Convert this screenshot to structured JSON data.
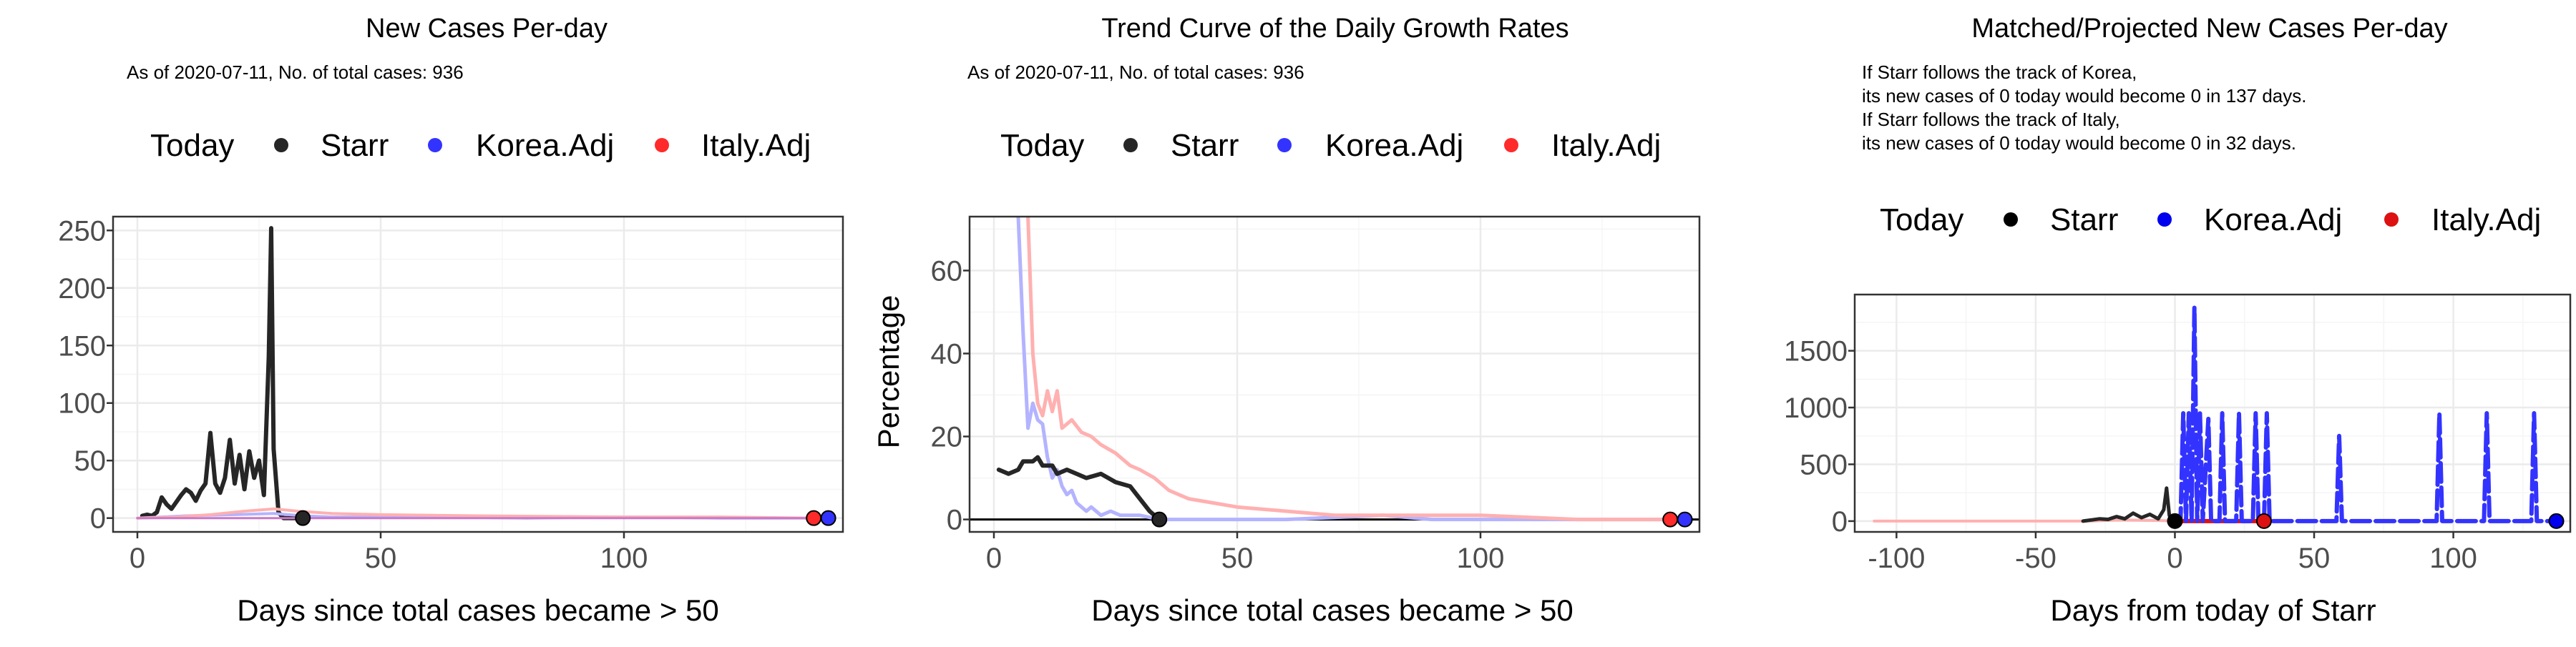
{
  "colors": {
    "starr": "#262626",
    "korea": "#3333ff",
    "italy": "#ff2a2a",
    "korea_faded": "#b3b3ff",
    "italy_faded": "#ffb0b0",
    "grid": "#ebebeb",
    "grid_minor": "#f5f5f5",
    "axis_text": "#4d4d4d"
  },
  "chart_data": [
    {
      "type": "line",
      "title": "New Cases Per-day",
      "subtitle": "As of 2020-07-11, No. of total cases: 936",
      "xlabel": "Days since total cases became > 50",
      "ylabel": "",
      "legend": {
        "title": "Today",
        "placement": "top",
        "entries": [
          "Starr",
          "Korea.Adj",
          "Italy.Adj"
        ]
      },
      "xlim": [
        -5,
        145
      ],
      "ylim": [
        -12,
        262
      ],
      "x_ticks": [
        0,
        50,
        100
      ],
      "y_ticks": [
        0,
        50,
        100,
        150,
        200,
        250
      ],
      "grid": true,
      "series": [
        {
          "name": "Starr",
          "color": "#262626",
          "width": 6,
          "points": [
            [
              1,
              2
            ],
            [
              2,
              3
            ],
            [
              3,
              2
            ],
            [
              4,
              5
            ],
            [
              5,
              18
            ],
            [
              6,
              12
            ],
            [
              7,
              8
            ],
            [
              8,
              14
            ],
            [
              9,
              20
            ],
            [
              10,
              25
            ],
            [
              11,
              22
            ],
            [
              12,
              15
            ],
            [
              13,
              24
            ],
            [
              14,
              30
            ],
            [
              15,
              74
            ],
            [
              16,
              30
            ],
            [
              17,
              22
            ],
            [
              18,
              35
            ],
            [
              19,
              68
            ],
            [
              20,
              30
            ],
            [
              21,
              55
            ],
            [
              22,
              25
            ],
            [
              23,
              58
            ],
            [
              24,
              35
            ],
            [
              25,
              50
            ],
            [
              26,
              20
            ],
            [
              27,
              140
            ],
            [
              27.5,
              252
            ],
            [
              28,
              60
            ],
            [
              29,
              5
            ],
            [
              30,
              0
            ],
            [
              33,
              0
            ],
            [
              34,
              0
            ]
          ]
        },
        {
          "name": "Korea.Adj",
          "color": "#b3b3ff",
          "width": 4,
          "points": [
            [
              0,
              0
            ],
            [
              10,
              2
            ],
            [
              20,
              3
            ],
            [
              28,
              4
            ],
            [
              34,
              2
            ],
            [
              40,
              1
            ],
            [
              60,
              1
            ],
            [
              80,
              0
            ],
            [
              100,
              1
            ],
            [
              120,
              0
            ],
            [
              142,
              0
            ]
          ]
        },
        {
          "name": "Italy.Adj",
          "color": "#ffb0b0",
          "width": 4,
          "points": [
            [
              0,
              0
            ],
            [
              8,
              1
            ],
            [
              15,
              3
            ],
            [
              22,
              6
            ],
            [
              28,
              8
            ],
            [
              33,
              6
            ],
            [
              40,
              4
            ],
            [
              50,
              3
            ],
            [
              70,
              2
            ],
            [
              100,
              1
            ],
            [
              120,
              1
            ],
            [
              140,
              0
            ]
          ]
        },
        {
          "name": "",
          "color": "#c879c8",
          "width": 3,
          "points": [
            [
              0,
              0
            ],
            [
              140,
              0
            ]
          ]
        }
      ],
      "markers": [
        {
          "series": "Starr",
          "x": 34,
          "y": 0
        },
        {
          "series": "Italy.Adj",
          "x": 139,
          "y": 0
        },
        {
          "series": "Korea.Adj",
          "x": 142,
          "y": 0
        }
      ]
    },
    {
      "type": "line",
      "title": "Trend Curve of the Daily Growth Rates",
      "subtitle": "As of 2020-07-11, No. of total cases: 936",
      "xlabel": "Days since total cases became > 50",
      "ylabel": "Percentage",
      "legend": {
        "title": "Today",
        "placement": "top",
        "entries": [
          "Starr",
          "Korea.Adj",
          "Italy.Adj"
        ]
      },
      "xlim": [
        -5,
        145
      ],
      "ylim": [
        -3,
        73
      ],
      "x_ticks": [
        0,
        50,
        100
      ],
      "y_ticks": [
        0,
        20,
        40,
        60
      ],
      "grid": true,
      "hline": 0,
      "series": [
        {
          "name": "Korea.Adj",
          "color": "#b3b3ff",
          "width": 5,
          "points": [
            [
              5,
              73
            ],
            [
              6,
              45
            ],
            [
              7,
              22
            ],
            [
              8,
              28
            ],
            [
              9,
              24
            ],
            [
              10,
              23
            ],
            [
              11,
              15
            ],
            [
              12,
              10
            ],
            [
              13,
              12
            ],
            [
              14,
              8
            ],
            [
              15,
              6
            ],
            [
              16,
              7
            ],
            [
              17,
              4
            ],
            [
              18,
              3
            ],
            [
              19,
              2
            ],
            [
              20,
              3
            ],
            [
              22,
              1
            ],
            [
              24,
              2
            ],
            [
              26,
              1
            ],
            [
              30,
              1
            ],
            [
              34,
              0
            ],
            [
              40,
              0
            ],
            [
              60,
              0
            ],
            [
              80,
              1
            ],
            [
              90,
              0
            ],
            [
              120,
              0
            ],
            [
              142,
              0
            ]
          ]
        },
        {
          "name": "Italy.Adj",
          "color": "#ffb0b0",
          "width": 5,
          "points": [
            [
              7,
              73
            ],
            [
              8,
              40
            ],
            [
              9,
              28
            ],
            [
              10,
              25
            ],
            [
              11,
              31
            ],
            [
              12,
              26
            ],
            [
              13,
              31
            ],
            [
              14,
              22
            ],
            [
              16,
              24
            ],
            [
              18,
              21
            ],
            [
              20,
              20
            ],
            [
              22,
              18
            ],
            [
              25,
              16
            ],
            [
              28,
              13
            ],
            [
              30,
              12
            ],
            [
              33,
              10
            ],
            [
              36,
              7
            ],
            [
              40,
              5
            ],
            [
              45,
              4
            ],
            [
              50,
              3
            ],
            [
              60,
              2
            ],
            [
              70,
              1
            ],
            [
              80,
              1
            ],
            [
              100,
              1
            ],
            [
              120,
              0
            ],
            [
              139,
              0
            ]
          ]
        },
        {
          "name": "Starr",
          "color": "#262626",
          "width": 6,
          "points": [
            [
              1,
              12
            ],
            [
              3,
              11
            ],
            [
              5,
              12
            ],
            [
              6,
              14
            ],
            [
              8,
              14
            ],
            [
              9,
              15
            ],
            [
              10,
              13
            ],
            [
              12,
              13
            ],
            [
              13,
              11
            ],
            [
              15,
              12
            ],
            [
              17,
              11
            ],
            [
              19,
              10
            ],
            [
              22,
              11
            ],
            [
              25,
              9
            ],
            [
              28,
              8
            ],
            [
              30,
              5
            ],
            [
              32,
              2
            ],
            [
              34,
              0
            ]
          ]
        }
      ],
      "markers": [
        {
          "series": "Starr",
          "x": 34,
          "y": 0
        },
        {
          "series": "Italy.Adj",
          "x": 139,
          "y": 0
        },
        {
          "series": "Korea.Adj",
          "x": 142,
          "y": 0
        }
      ]
    },
    {
      "type": "line",
      "title": "Matched/Projected New Cases Per-day",
      "subtitle_lines": [
        "If Starr follows the track of Korea,",
        "its new cases of 0 today would become 0 in 137 days.",
        "If Starr follows the track of Italy,",
        "its new cases of 0 today would become 0 in 32 days."
      ],
      "xlabel": "Days from today of Starr",
      "ylabel": "",
      "legend": {
        "title": "Today",
        "placement": "top",
        "entries": [
          "Starr",
          "Korea.Adj",
          "Italy.Adj"
        ]
      },
      "xlim": [
        -115,
        142
      ],
      "ylim": [
        -95,
        1995
      ],
      "x_ticks": [
        -100,
        -50,
        0,
        50,
        100
      ],
      "y_ticks": [
        0,
        500,
        1000,
        1500
      ],
      "grid": true,
      "series": [
        {
          "name": "Italy.Adj",
          "color": "#ffb0b0",
          "width": 4,
          "points": [
            [
              -108,
              0
            ],
            [
              -30,
              0
            ],
            [
              -20,
              10
            ],
            [
              -5,
              5
            ],
            [
              0,
              0
            ]
          ]
        },
        {
          "name": "Starr",
          "color": "#262626",
          "width": 5,
          "points": [
            [
              -33,
              0
            ],
            [
              -30,
              10
            ],
            [
              -27,
              20
            ],
            [
              -24,
              15
            ],
            [
              -21,
              40
            ],
            [
              -18,
              20
            ],
            [
              -15,
              70
            ],
            [
              -12,
              30
            ],
            [
              -9,
              60
            ],
            [
              -6,
              20
            ],
            [
              -4,
              100
            ],
            [
              -3,
              290
            ],
            [
              -2,
              50
            ],
            [
              -1,
              10
            ],
            [
              0,
              0
            ]
          ]
        },
        {
          "name": "Italy.Adj",
          "color": "#dd1111",
          "width": 6,
          "points": [
            [
              0,
              0
            ],
            [
              32,
              0
            ]
          ]
        },
        {
          "name": "Korea.Adj",
          "color": "#3333ff",
          "width": 6,
          "dashed": true,
          "points": [
            [
              0,
              0
            ],
            [
              2,
              0
            ],
            [
              3,
              950
            ],
            [
              4,
              0
            ],
            [
              5,
              950
            ],
            [
              6,
              0
            ],
            [
              7,
              1880
            ],
            [
              8,
              0
            ],
            [
              9,
              950
            ],
            [
              10,
              0
            ],
            [
              12,
              900
            ],
            [
              13,
              0
            ],
            [
              16,
              0
            ],
            [
              17,
              950
            ],
            [
              18,
              0
            ],
            [
              22,
              0
            ],
            [
              23,
              950
            ],
            [
              24,
              0
            ],
            [
              28,
              0
            ],
            [
              29,
              950
            ],
            [
              30,
              0
            ],
            [
              32,
              0
            ],
            [
              33,
              950
            ],
            [
              34,
              0
            ],
            [
              58,
              0
            ],
            [
              59,
              750
            ],
            [
              60,
              0
            ],
            [
              94,
              0
            ],
            [
              95,
              950
            ],
            [
              96,
              0
            ],
            [
              111,
              0
            ],
            [
              112,
              950
            ],
            [
              113,
              0
            ],
            [
              128,
              0
            ],
            [
              129,
              950
            ],
            [
              130,
              0
            ],
            [
              137,
              0
            ]
          ]
        }
      ],
      "markers": [
        {
          "series": "Starr",
          "x": 0,
          "y": 0
        },
        {
          "series": "Italy.Adj",
          "x": 32,
          "y": 0
        },
        {
          "series": "Korea.Adj",
          "x": 137,
          "y": 0
        }
      ]
    }
  ]
}
